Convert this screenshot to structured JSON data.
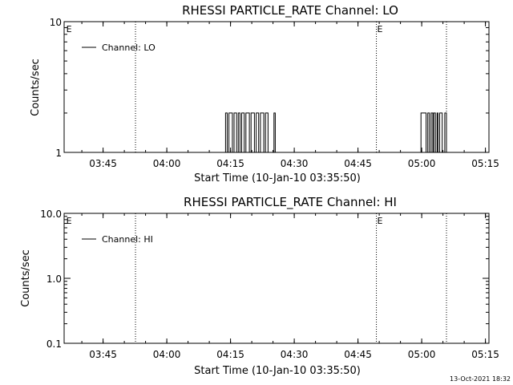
{
  "footer_timestamp": "13-Oct-2021 18:32",
  "chart_data": [
    {
      "type": "line",
      "title": "RHESSI PARTICLE_RATE Channel: LO",
      "xlabel": "Start Time (10-Jan-10 03:35:50)",
      "ylabel": "Counts/sec",
      "yscale": "log",
      "ylim": [
        1,
        10
      ],
      "xlim_minutes": [
        0,
        100
      ],
      "x_ticks": [
        {
          "min": 9.17,
          "label": "03:45"
        },
        {
          "min": 24.17,
          "label": "04:00"
        },
        {
          "min": 39.17,
          "label": "04:15"
        },
        {
          "min": 54.17,
          "label": "04:30"
        },
        {
          "min": 69.17,
          "label": "04:45"
        },
        {
          "min": 84.17,
          "label": "05:00"
        },
        {
          "min": 99.17,
          "label": "05:15"
        }
      ],
      "y_ticks": [
        {
          "value": 1,
          "label": "1"
        },
        {
          "value": 10,
          "label": "10"
        }
      ],
      "y_minor_ticks": [
        2,
        3,
        4,
        5,
        6,
        7,
        8,
        9
      ],
      "legend": {
        "label": "Channel: LO",
        "position": "top-left"
      },
      "markers": [
        {
          "min": 0.3,
          "label": "E",
          "line": false
        },
        {
          "min": 16.8,
          "label": "",
          "line": true
        },
        {
          "min": 73.5,
          "label": "E",
          "line": true
        },
        {
          "min": 90.0,
          "label": "",
          "line": true
        }
      ],
      "series": [
        {
          "x": [
            0,
            38.0,
            38.0,
            38.4,
            38.4,
            38.8,
            38.8,
            39.6,
            39.6,
            40.0,
            40.0,
            40.6,
            40.6,
            41.0,
            41.0,
            41.4,
            41.4,
            41.8,
            41.8,
            42.4,
            42.4,
            42.8,
            42.8,
            43.6,
            43.6,
            44.0,
            44.0,
            44.8,
            44.8,
            45.2,
            45.2,
            45.8,
            45.8,
            46.2,
            46.2,
            47.0,
            47.0,
            47.4,
            47.4,
            48.0,
            48.0,
            48.4,
            48.4,
            49.4,
            49.4,
            49.7,
            49.7,
            84.0,
            84.0,
            85.2,
            85.2,
            85.6,
            85.6,
            86.0,
            86.0,
            86.4,
            86.4,
            86.8,
            86.8,
            87.0,
            87.0,
            87.4,
            87.4,
            87.8,
            87.8,
            88.0,
            88.0,
            88.4,
            88.4,
            89.0,
            89.0,
            89.6,
            89.6,
            90.0,
            90.0
          ],
          "y": [
            1,
            1,
            2,
            2,
            1,
            1,
            2,
            2,
            1,
            1,
            2,
            2,
            1,
            1,
            2,
            2,
            1,
            1,
            2,
            2,
            1,
            1,
            2,
            2,
            1,
            1,
            2,
            2,
            1,
            1,
            2,
            2,
            1,
            1,
            2,
            2,
            1,
            1,
            2,
            2,
            1,
            1,
            1,
            1,
            2,
            2,
            1,
            1,
            2,
            2,
            1,
            1,
            2,
            2,
            1,
            1,
            2,
            2,
            1,
            1,
            2,
            2,
            1,
            1,
            2,
            2,
            1,
            1,
            2,
            2,
            1,
            1,
            2,
            2,
            1
          ]
        }
      ]
    },
    {
      "type": "line",
      "title": "RHESSI PARTICLE_RATE Channel: HI",
      "xlabel": "Start Time (10-Jan-10 03:35:50)",
      "ylabel": "Counts/sec",
      "yscale": "log",
      "ylim": [
        0.1,
        10
      ],
      "xlim_minutes": [
        0,
        100
      ],
      "x_ticks": [
        {
          "min": 9.17,
          "label": "03:45"
        },
        {
          "min": 24.17,
          "label": "04:00"
        },
        {
          "min": 39.17,
          "label": "04:15"
        },
        {
          "min": 54.17,
          "label": "04:30"
        },
        {
          "min": 69.17,
          "label": "04:45"
        },
        {
          "min": 84.17,
          "label": "05:00"
        },
        {
          "min": 99.17,
          "label": "05:15"
        }
      ],
      "y_ticks": [
        {
          "value": 0.1,
          "label": "0.1"
        },
        {
          "value": 1,
          "label": "1.0"
        },
        {
          "value": 10,
          "label": "10.0"
        }
      ],
      "y_minor_ticks": [
        0.2,
        0.3,
        0.4,
        0.5,
        0.6,
        0.7,
        0.8,
        0.9,
        2,
        3,
        4,
        5,
        6,
        7,
        8,
        9
      ],
      "legend": {
        "label": "Channel: HI",
        "position": "top-left"
      },
      "markers": [
        {
          "min": 0.3,
          "label": "E",
          "line": false
        },
        {
          "min": 16.8,
          "label": "",
          "line": true
        },
        {
          "min": 73.5,
          "label": "E",
          "line": true
        },
        {
          "min": 90.0,
          "label": "",
          "line": true
        }
      ],
      "series": []
    }
  ]
}
